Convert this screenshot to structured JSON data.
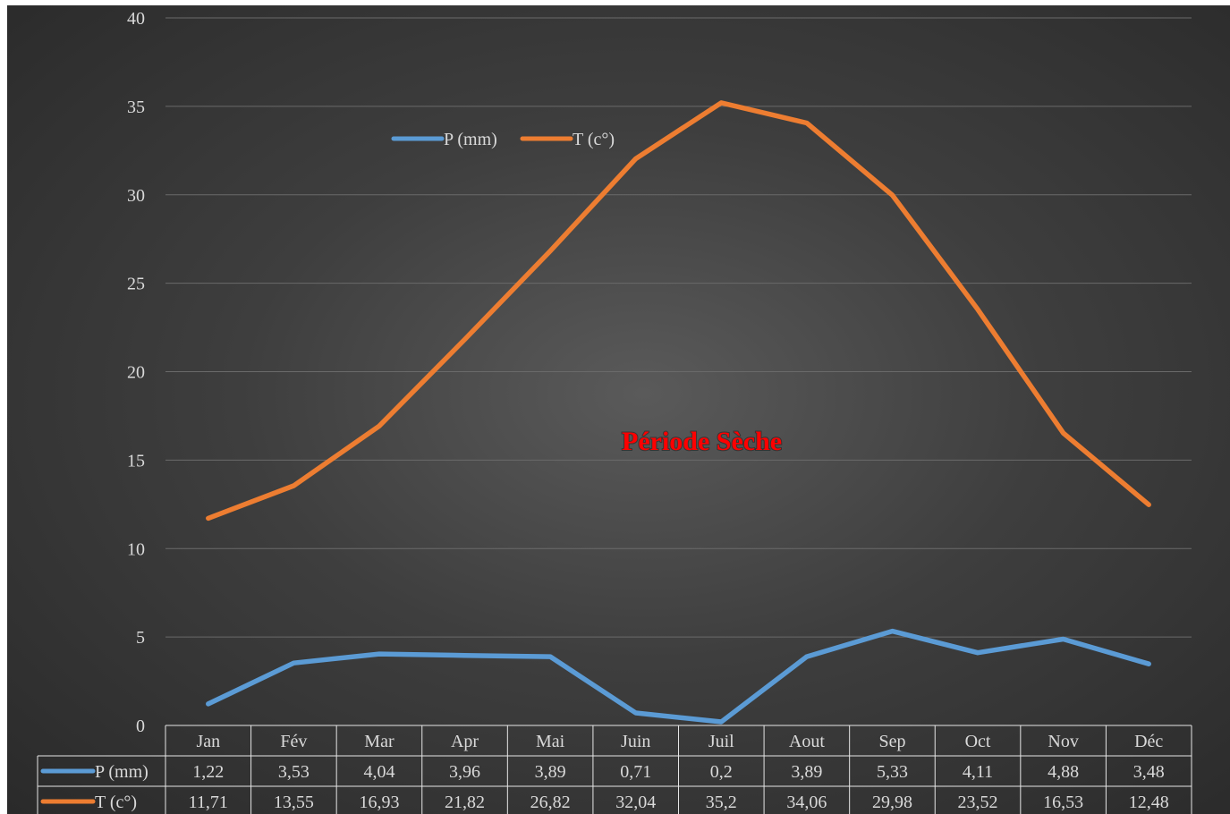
{
  "chart_data": {
    "type": "line",
    "title": "",
    "xlabel": "",
    "ylabel": "",
    "ylim": [
      0,
      40
    ],
    "yticks": [
      0,
      5,
      10,
      15,
      20,
      25,
      30,
      35,
      40
    ],
    "grid": true,
    "legend_position": "top-center",
    "categories": [
      "Jan",
      "Fév",
      "Mar",
      "Apr",
      "Mai",
      "Juin",
      "Juil",
      "Aout",
      "Sep",
      "Oct",
      "Nov",
      "Déc"
    ],
    "series": [
      {
        "name": "P (mm)",
        "color": "#5b9bd5",
        "values": [
          1.22,
          3.53,
          4.04,
          3.96,
          3.89,
          0.71,
          0.2,
          3.89,
          5.33,
          4.11,
          4.88,
          3.48
        ],
        "labels": [
          "1,22",
          "3,53",
          "4,04",
          "3,96",
          "3,89",
          "0,71",
          "0,2",
          "3,89",
          "5,33",
          "4,11",
          "4,88",
          "3,48"
        ]
      },
      {
        "name": "T (c°)",
        "color": "#ed7d31",
        "values": [
          11.71,
          13.55,
          16.93,
          21.82,
          26.82,
          32.04,
          35.2,
          34.06,
          29.98,
          23.52,
          16.53,
          12.48
        ],
        "labels": [
          "11,71",
          "13,55",
          "16,93",
          "21,82",
          "26,82",
          "32,04",
          "35,2",
          "34,06",
          "29,98",
          "23,52",
          "16,53",
          "12,48"
        ]
      }
    ],
    "annotations": [
      {
        "text": "Période Sèche",
        "color": "#ff0000"
      }
    ],
    "data_table": true
  }
}
